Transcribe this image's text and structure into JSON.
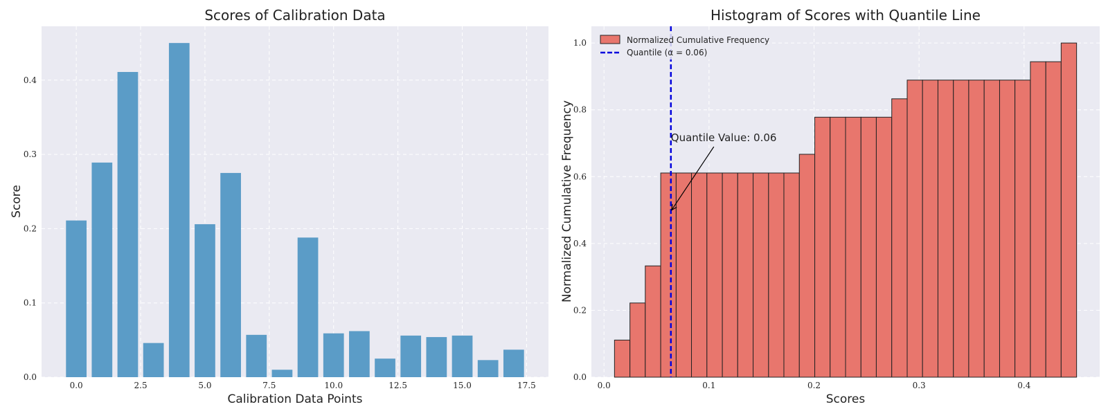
{
  "chart_data": [
    {
      "type": "bar",
      "title": "Scores of Calibration Data",
      "xlabel": "Calibration Data Points",
      "ylabel": "Score",
      "x": [
        0,
        1,
        2,
        3,
        4,
        5,
        6,
        7,
        8,
        9,
        10,
        11,
        12,
        13,
        14,
        15,
        16,
        17
      ],
      "values": [
        0.211,
        0.289,
        0.411,
        0.046,
        0.45,
        0.206,
        0.275,
        0.057,
        0.01,
        0.188,
        0.059,
        0.062,
        0.025,
        0.056,
        0.054,
        0.056,
        0.023,
        0.037
      ],
      "xlim": [
        -1.35,
        18.35
      ],
      "ylim": [
        0,
        0.4725
      ],
      "xticks": [
        0.0,
        2.5,
        5.0,
        7.5,
        10.0,
        12.5,
        15.0,
        17.5
      ],
      "xtick_labels": [
        "0.0",
        "2.5",
        "5.0",
        "7.5",
        "10.0",
        "12.5",
        "15.0",
        "17.5"
      ],
      "yticks": [
        0.0,
        0.1,
        0.2,
        0.3,
        0.4
      ],
      "ytick_labels": [
        "0.0",
        "0.1",
        "0.2",
        "0.3",
        "0.4"
      ],
      "color": "#5b9cc7",
      "grid": true
    },
    {
      "type": "histogram",
      "title": "Histogram of Scores with Quantile Line",
      "xlabel": "Scores",
      "ylabel": "Normalized Cumulative Frequency",
      "bin_edges": [
        0.01,
        0.0247,
        0.0393,
        0.054,
        0.0687,
        0.0833,
        0.098,
        0.1127,
        0.1273,
        0.142,
        0.1567,
        0.1713,
        0.186,
        0.2007,
        0.2153,
        0.23,
        0.2447,
        0.2593,
        0.274,
        0.2887,
        0.3033,
        0.318,
        0.3327,
        0.3473,
        0.362,
        0.3767,
        0.3913,
        0.406,
        0.4207,
        0.4353,
        0.45
      ],
      "values": [
        0.111,
        0.222,
        0.333,
        0.611,
        0.611,
        0.611,
        0.611,
        0.611,
        0.611,
        0.611,
        0.611,
        0.611,
        0.667,
        0.778,
        0.778,
        0.778,
        0.778,
        0.778,
        0.833,
        0.889,
        0.889,
        0.889,
        0.889,
        0.889,
        0.889,
        0.889,
        0.889,
        0.944,
        0.944,
        1.0
      ],
      "xlim": [
        -0.012,
        0.472
      ],
      "ylim": [
        0,
        1.05
      ],
      "xticks": [
        0.0,
        0.1,
        0.2,
        0.3,
        0.4
      ],
      "xtick_labels": [
        "0.0",
        "0.1",
        "0.2",
        "0.3",
        "0.4"
      ],
      "yticks": [
        0.0,
        0.2,
        0.4,
        0.6,
        0.8,
        1.0
      ],
      "ytick_labels": [
        "0.0",
        "0.2",
        "0.4",
        "0.6",
        "0.8",
        "1.0"
      ],
      "color": "#e8766d",
      "edge_color": "#222222",
      "quantile": 0.0637,
      "quantile_color": "#0000dd",
      "legend": {
        "position": "top-left",
        "hist_label": "Normalized Cumulative Frequency",
        "quantile_label": "Quantile (α = 0.06)"
      },
      "annotation": {
        "text": "Quantile Value: 0.06",
        "text_at": [
          0.0637,
          0.7
        ],
        "arrow_to": [
          0.0637,
          0.5
        ]
      },
      "grid": true
    }
  ]
}
